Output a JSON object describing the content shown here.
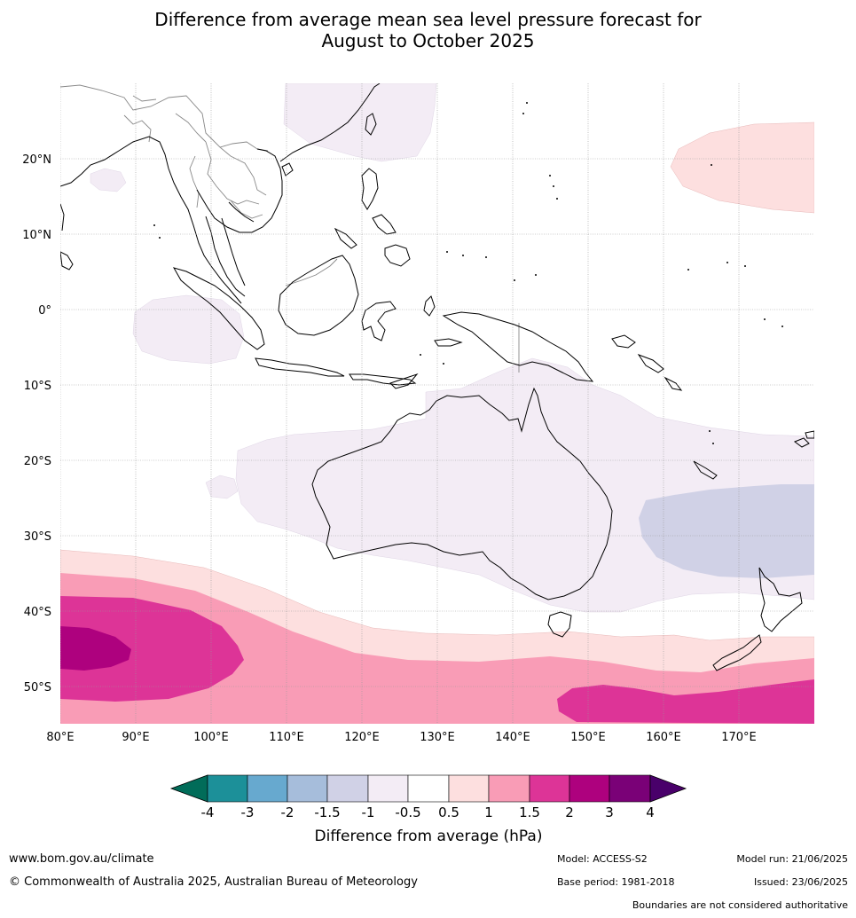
{
  "title": {
    "line1": "Difference from average mean sea level pressure forecast for",
    "line2": "August to October 2025"
  },
  "map": {
    "lat_labels": [
      "20°N",
      "10°N",
      "0°",
      "10°S",
      "20°S",
      "30°S",
      "40°S",
      "50°S"
    ],
    "lon_labels": [
      "80°E",
      "90°E",
      "100°E",
      "110°E",
      "120°E",
      "130°E",
      "140°E",
      "150°E",
      "160°E",
      "170°E"
    ],
    "colors": {
      "pos_0_5": "#fddfdf",
      "pos_1": "#f99cb6",
      "pos_1_5": "#dd3497",
      "pos_2": "#ae017e",
      "neg_0_5": "#f3ecf5",
      "neg_1": "#d0d1e6",
      "coast": "#000000",
      "border": "#888888",
      "grid": "#aaaaaa"
    }
  },
  "colorbar": {
    "title": "Difference from average (hPa)",
    "tick_labels": [
      "-4",
      "-3",
      "-2",
      "-1.5",
      "-1",
      "-0.5",
      "0.5",
      "1",
      "1.5",
      "2",
      "3",
      "4"
    ],
    "low_extend_color": "#016c59",
    "high_extend_color": "#49006a",
    "colors": [
      "#1c9099",
      "#67a9cf",
      "#a6bddb",
      "#d0d1e6",
      "#f3ecf5",
      "#ffffff",
      "#fddfdf",
      "#f99cb6",
      "#dd3497",
      "#ae017e",
      "#7a0177"
    ]
  },
  "footer": {
    "website": "www.bom.gov.au/climate",
    "copyright": "© Commonwealth of Australia 2025, Australian Bureau of Meteorology",
    "model": "Model: ACCESS-S2",
    "base_period": "Base period: 1981-2018",
    "model_run": "Model run: 21/06/2025",
    "issued": "Issued: 23/06/2025",
    "disclaimer": "Boundaries are not considered authoritative"
  }
}
